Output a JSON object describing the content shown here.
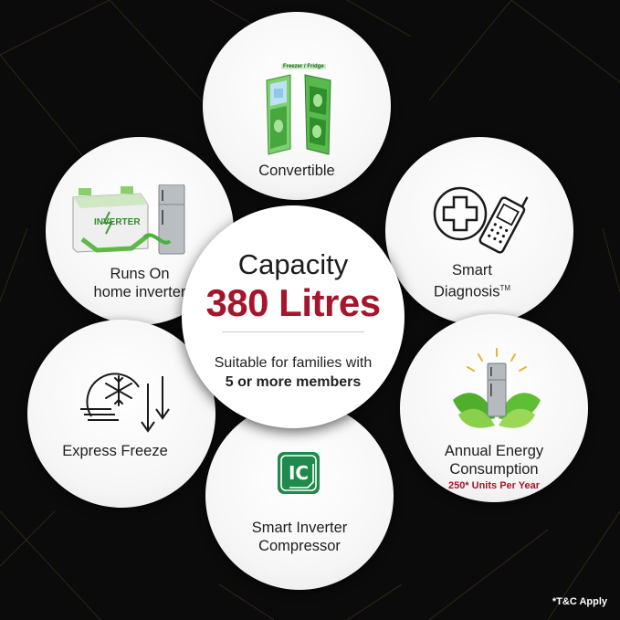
{
  "center": {
    "heading": "Capacity",
    "capacity": "380 Litres",
    "suitable_line1": "Suitable for families with",
    "suitable_line2": "5 or more members"
  },
  "features": {
    "convertible": {
      "label": "Convertible",
      "icon_caption": "Freezer / Fridge",
      "icon": "convertible-fridge-icon"
    },
    "smart_diagnosis": {
      "label_line1": "Smart",
      "label_line2": "Diagnosis",
      "trademark": "TM",
      "icon": "medical-cross-phone-icon"
    },
    "energy": {
      "label_line1": "Annual Energy",
      "label_line2": "Consumption",
      "sub": "250* Units Per Year",
      "icon": "fridge-leaves-icon"
    },
    "compressor": {
      "label_line1": "Smart Inverter",
      "label_line2": "Compressor",
      "icon_text": "IC",
      "icon": "inverter-compressor-icon"
    },
    "express_freeze": {
      "label": "Express Freeze",
      "icon": "snowflake-arrows-icon"
    },
    "inverter": {
      "label_line1": "Runs On",
      "label_line2": "home inverter",
      "icon_text": "INVERTER",
      "icon": "inverter-battery-fridge-icon"
    }
  },
  "footnote": "*T&C Apply",
  "colors": {
    "accent_red": "#a5152b",
    "icon_green": "#3fae3a",
    "background": "#0b0b0b"
  }
}
